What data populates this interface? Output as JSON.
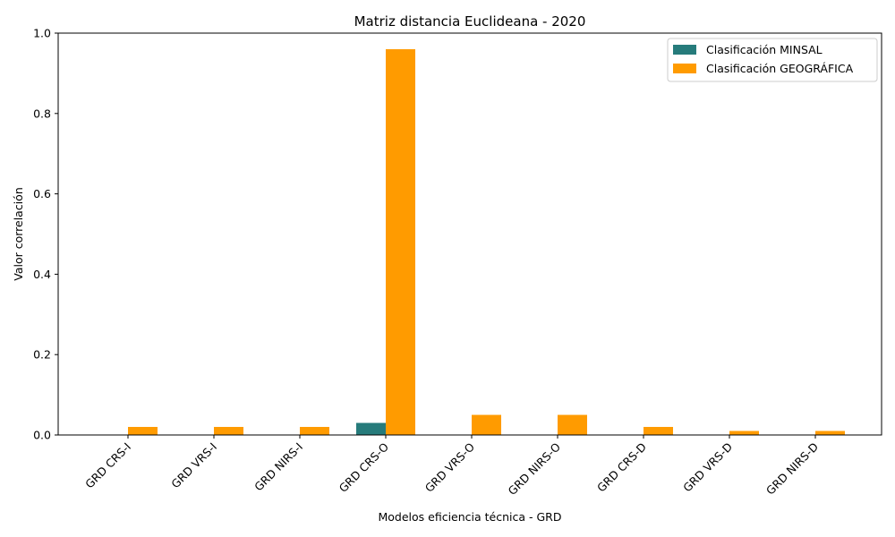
{
  "chart_data": {
    "type": "bar",
    "title": "Matriz distancia Euclideana - 2020",
    "xlabel": "Modelos eficiencia técnica - GRD",
    "ylabel": "Valor correlación",
    "ylim": [
      0,
      1.0
    ],
    "yticks": [
      "0.0",
      "0.2",
      "0.4",
      "0.6",
      "0.8",
      "1.0"
    ],
    "categories": [
      "GRD CRS-I",
      "GRD VRS-I",
      "GRD NIRS-I",
      "GRD CRS-O",
      "GRD VRS-O",
      "GRD NIRS-O",
      "GRD CRS-D",
      "GRD VRS-D",
      "GRD NIRS-D"
    ],
    "series": [
      {
        "name": "Clasificación MINSAL",
        "color": "#267b7b",
        "values": [
          0,
          0,
          0,
          0.03,
          0,
          0,
          0,
          0,
          0
        ]
      },
      {
        "name": "Clasificación GEOGRÁFICA",
        "color": "#ff9b00",
        "values": [
          0.02,
          0.02,
          0.02,
          0.96,
          0.05,
          0.05,
          0.02,
          0.01,
          0.01
        ]
      }
    ],
    "legend_position": "top-right",
    "grid": false
  }
}
